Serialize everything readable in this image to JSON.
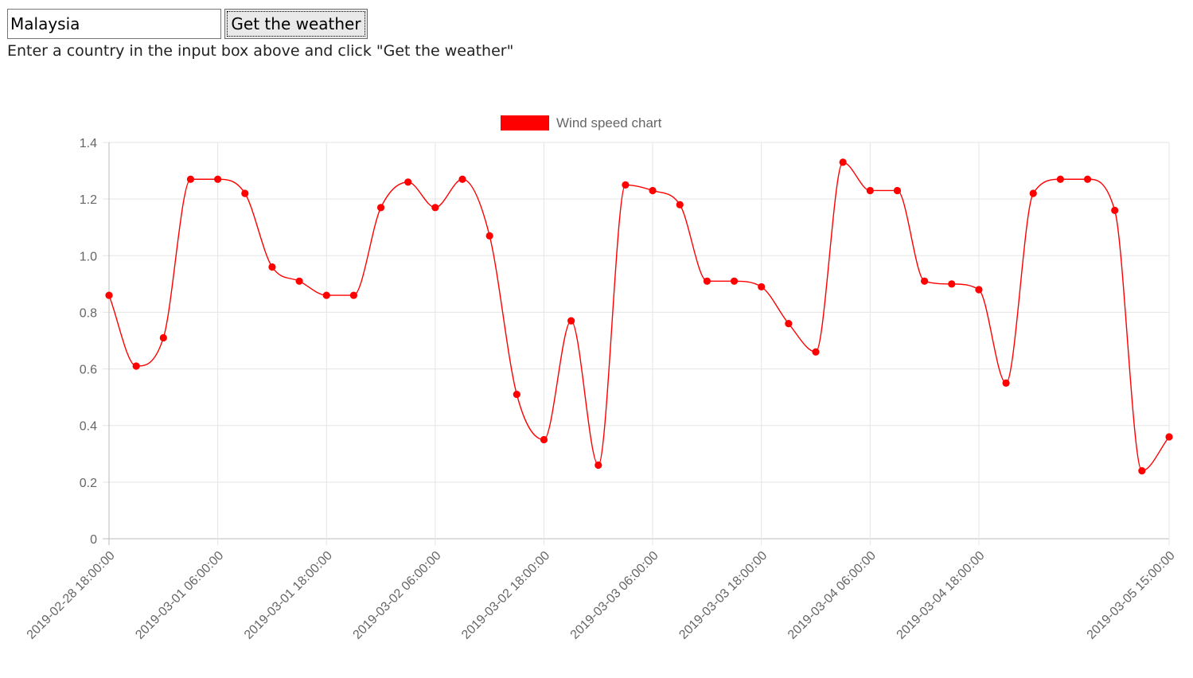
{
  "form": {
    "input_value": "Malaysia",
    "button_label": "Get the weather",
    "instructions": "Enter a country in the input box above and click \"Get the weather\""
  },
  "colors": {
    "series": "#ff0000",
    "grid": "#e5e5e5",
    "axis": "#b0b0b0",
    "text": "#666666"
  },
  "chart_data": {
    "type": "line",
    "title": "",
    "xlabel": "",
    "ylabel": "",
    "legend_position": "top-center",
    "grid": true,
    "ylim": [
      0,
      1.4
    ],
    "yticks": [
      "0",
      "0.2",
      "0.4",
      "0.6",
      "0.8",
      "1.0",
      "1.2",
      "1.4"
    ],
    "xtick_labels": [
      "2019-02-28 18:00:00",
      "2019-03-01 06:00:00",
      "2019-03-01 18:00:00",
      "2019-03-02 06:00:00",
      "2019-03-02 18:00:00",
      "2019-03-03 06:00:00",
      "2019-03-03 18:00:00",
      "2019-03-04 06:00:00",
      "2019-03-04 18:00:00",
      "2019-03-05 15:00:00"
    ],
    "x": [
      "2019-02-28 18:00:00",
      "2019-02-28 21:00:00",
      "2019-03-01 00:00:00",
      "2019-03-01 03:00:00",
      "2019-03-01 06:00:00",
      "2019-03-01 09:00:00",
      "2019-03-01 12:00:00",
      "2019-03-01 15:00:00",
      "2019-03-01 18:00:00",
      "2019-03-01 21:00:00",
      "2019-03-02 00:00:00",
      "2019-03-02 03:00:00",
      "2019-03-02 06:00:00",
      "2019-03-02 09:00:00",
      "2019-03-02 12:00:00",
      "2019-03-02 15:00:00",
      "2019-03-02 18:00:00",
      "2019-03-02 21:00:00",
      "2019-03-03 00:00:00",
      "2019-03-03 03:00:00",
      "2019-03-03 06:00:00",
      "2019-03-03 09:00:00",
      "2019-03-03 12:00:00",
      "2019-03-03 15:00:00",
      "2019-03-03 18:00:00",
      "2019-03-03 21:00:00",
      "2019-03-04 00:00:00",
      "2019-03-04 03:00:00",
      "2019-03-04 06:00:00",
      "2019-03-04 09:00:00",
      "2019-03-04 12:00:00",
      "2019-03-04 15:00:00",
      "2019-03-04 18:00:00",
      "2019-03-04 21:00:00",
      "2019-03-05 00:00:00",
      "2019-03-05 03:00:00",
      "2019-03-05 06:00:00",
      "2019-03-05 09:00:00",
      "2019-03-05 12:00:00",
      "2019-03-05 15:00:00"
    ],
    "series": [
      {
        "name": "Wind speed chart",
        "color": "#ff0000",
        "values": [
          0.86,
          0.61,
          0.71,
          1.27,
          1.27,
          1.22,
          0.96,
          0.91,
          0.86,
          0.86,
          1.17,
          1.26,
          1.17,
          1.27,
          1.07,
          0.51,
          0.35,
          0.77,
          0.26,
          1.25,
          1.23,
          1.18,
          0.91,
          0.91,
          0.89,
          0.76,
          0.66,
          1.33,
          1.23,
          1.23,
          0.91,
          0.9,
          0.88,
          0.55,
          1.22,
          1.27,
          1.27,
          1.16,
          0.24,
          0.36
        ]
      }
    ]
  }
}
